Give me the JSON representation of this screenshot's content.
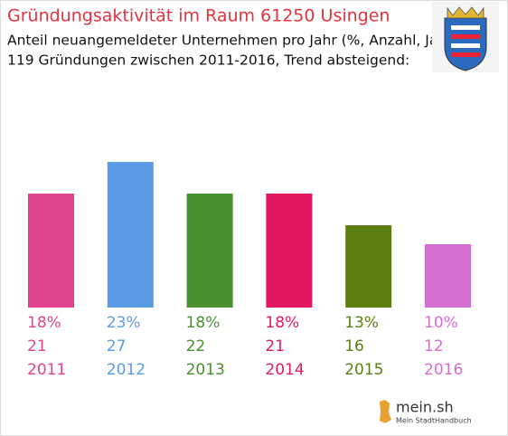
{
  "chart_data": {
    "type": "bar",
    "title": "Gründungsaktivität im Raum 61250 Usingen",
    "subtitle": [
      "Anteil neuangemeldeter Unternehmen pro Jahr (%, Anzahl, Jahr)",
      "119 Gründungen zwischen 2011-2016, Trend absteigend:"
    ],
    "categories": [
      "2011",
      "2012",
      "2013",
      "2014",
      "2015",
      "2016"
    ],
    "values": [
      18,
      23,
      18,
      18,
      13,
      10
    ],
    "value_labels": [
      "18%",
      "23%",
      "18%",
      "18%",
      "13%",
      "10%"
    ],
    "counts": [
      21,
      27,
      22,
      21,
      16,
      12
    ],
    "colors": [
      "#e0448f",
      "#5b9be6",
      "#4a8f2d",
      "#e31863",
      "#5b7f10",
      "#d36dd0"
    ]
  },
  "branding": {
    "name": "mein.sh",
    "tagline": "Mein StadtHandbuch"
  }
}
